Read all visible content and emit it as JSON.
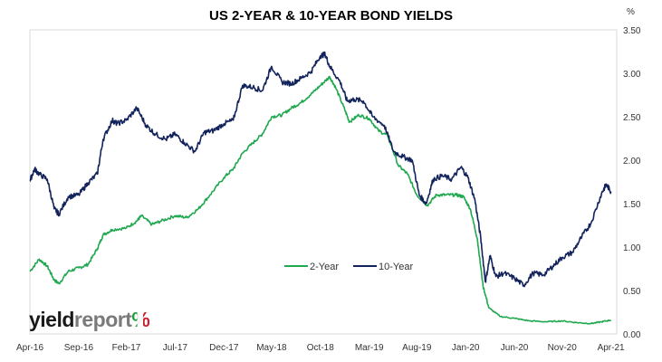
{
  "chart_data": {
    "type": "line",
    "title": "US 2-YEAR & 10-YEAR BOND YIELDS",
    "ylabel": "%",
    "ylim": [
      0,
      3.5
    ],
    "yticks": [
      "0.00",
      "0.50",
      "1.00",
      "1.50",
      "2.00",
      "2.50",
      "3.00",
      "3.50"
    ],
    "xlim": [
      2016.25,
      2021.3
    ],
    "xticks": [
      {
        "x": 2016.25,
        "label": "Apr-16"
      },
      {
        "x": 2016.67,
        "label": "Sep-16"
      },
      {
        "x": 2017.08,
        "label": "Feb-17"
      },
      {
        "x": 2017.5,
        "label": "Jul-17"
      },
      {
        "x": 2017.92,
        "label": "Dec-17"
      },
      {
        "x": 2018.33,
        "label": "May-18"
      },
      {
        "x": 2018.75,
        "label": "Oct-18"
      },
      {
        "x": 2019.17,
        "label": "Mar-19"
      },
      {
        "x": 2019.58,
        "label": "Aug-19"
      },
      {
        "x": 2020.0,
        "label": "Jan-20"
      },
      {
        "x": 2020.42,
        "label": "Jun-20"
      },
      {
        "x": 2020.83,
        "label": "Nov-20"
      },
      {
        "x": 2021.25,
        "label": "Apr-21"
      }
    ],
    "grid": false,
    "legend": "center",
    "series": [
      {
        "name": "2-Year",
        "color": "#1fa84f",
        "points": [
          [
            2016.25,
            0.72
          ],
          [
            2016.33,
            0.86
          ],
          [
            2016.4,
            0.78
          ],
          [
            2016.46,
            0.62
          ],
          [
            2016.5,
            0.58
          ],
          [
            2016.58,
            0.72
          ],
          [
            2016.67,
            0.76
          ],
          [
            2016.75,
            0.8
          ],
          [
            2016.83,
            0.98
          ],
          [
            2016.88,
            1.14
          ],
          [
            2016.96,
            1.2
          ],
          [
            2017.08,
            1.22
          ],
          [
            2017.17,
            1.3
          ],
          [
            2017.21,
            1.36
          ],
          [
            2017.3,
            1.26
          ],
          [
            2017.38,
            1.3
          ],
          [
            2017.5,
            1.36
          ],
          [
            2017.6,
            1.34
          ],
          [
            2017.7,
            1.44
          ],
          [
            2017.8,
            1.6
          ],
          [
            2017.92,
            1.8
          ],
          [
            2018.0,
            1.9
          ],
          [
            2018.08,
            2.08
          ],
          [
            2018.17,
            2.2
          ],
          [
            2018.25,
            2.3
          ],
          [
            2018.33,
            2.5
          ],
          [
            2018.42,
            2.52
          ],
          [
            2018.5,
            2.6
          ],
          [
            2018.58,
            2.66
          ],
          [
            2018.67,
            2.76
          ],
          [
            2018.75,
            2.86
          ],
          [
            2018.83,
            2.96
          ],
          [
            2018.88,
            2.84
          ],
          [
            2018.96,
            2.58
          ],
          [
            2019.0,
            2.44
          ],
          [
            2019.08,
            2.52
          ],
          [
            2019.17,
            2.48
          ],
          [
            2019.25,
            2.34
          ],
          [
            2019.33,
            2.28
          ],
          [
            2019.42,
            1.94
          ],
          [
            2019.5,
            1.84
          ],
          [
            2019.58,
            1.6
          ],
          [
            2019.67,
            1.48
          ],
          [
            2019.75,
            1.6
          ],
          [
            2019.83,
            1.6
          ],
          [
            2019.92,
            1.6
          ],
          [
            2019.98,
            1.58
          ],
          [
            2020.04,
            1.44
          ],
          [
            2020.1,
            1.1
          ],
          [
            2020.15,
            0.55
          ],
          [
            2020.2,
            0.3
          ],
          [
            2020.3,
            0.2
          ],
          [
            2020.42,
            0.18
          ],
          [
            2020.55,
            0.15
          ],
          [
            2020.7,
            0.14
          ],
          [
            2020.83,
            0.15
          ],
          [
            2020.96,
            0.13
          ],
          [
            2021.08,
            0.12
          ],
          [
            2021.17,
            0.14
          ],
          [
            2021.25,
            0.16
          ]
        ]
      },
      {
        "name": "10-Year",
        "color": "#13235c",
        "points": [
          [
            2016.25,
            1.76
          ],
          [
            2016.29,
            1.9
          ],
          [
            2016.33,
            1.84
          ],
          [
            2016.4,
            1.78
          ],
          [
            2016.46,
            1.44
          ],
          [
            2016.5,
            1.38
          ],
          [
            2016.58,
            1.58
          ],
          [
            2016.67,
            1.6
          ],
          [
            2016.75,
            1.74
          ],
          [
            2016.83,
            1.84
          ],
          [
            2016.88,
            2.24
          ],
          [
            2016.96,
            2.46
          ],
          [
            2017.0,
            2.42
          ],
          [
            2017.08,
            2.46
          ],
          [
            2017.17,
            2.6
          ],
          [
            2017.25,
            2.4
          ],
          [
            2017.33,
            2.3
          ],
          [
            2017.42,
            2.24
          ],
          [
            2017.5,
            2.3
          ],
          [
            2017.58,
            2.2
          ],
          [
            2017.67,
            2.1
          ],
          [
            2017.75,
            2.32
          ],
          [
            2017.83,
            2.34
          ],
          [
            2017.92,
            2.42
          ],
          [
            2018.0,
            2.46
          ],
          [
            2018.08,
            2.86
          ],
          [
            2018.17,
            2.84
          ],
          [
            2018.25,
            2.8
          ],
          [
            2018.33,
            3.08
          ],
          [
            2018.42,
            2.9
          ],
          [
            2018.5,
            2.88
          ],
          [
            2018.58,
            2.94
          ],
          [
            2018.67,
            3.02
          ],
          [
            2018.75,
            3.2
          ],
          [
            2018.79,
            3.22
          ],
          [
            2018.83,
            3.08
          ],
          [
            2018.92,
            2.9
          ],
          [
            2018.98,
            2.68
          ],
          [
            2019.04,
            2.7
          ],
          [
            2019.12,
            2.68
          ],
          [
            2019.2,
            2.5
          ],
          [
            2019.3,
            2.4
          ],
          [
            2019.38,
            2.1
          ],
          [
            2019.46,
            2.04
          ],
          [
            2019.54,
            2.0
          ],
          [
            2019.6,
            1.6
          ],
          [
            2019.66,
            1.5
          ],
          [
            2019.72,
            1.78
          ],
          [
            2019.8,
            1.82
          ],
          [
            2019.88,
            1.78
          ],
          [
            2019.96,
            1.92
          ],
          [
            2020.02,
            1.8
          ],
          [
            2020.08,
            1.54
          ],
          [
            2020.13,
            1.1
          ],
          [
            2020.17,
            0.6
          ],
          [
            2020.21,
            0.9
          ],
          [
            2020.26,
            0.66
          ],
          [
            2020.33,
            0.7
          ],
          [
            2020.42,
            0.64
          ],
          [
            2020.5,
            0.56
          ],
          [
            2020.58,
            0.7
          ],
          [
            2020.67,
            0.68
          ],
          [
            2020.75,
            0.78
          ],
          [
            2020.83,
            0.88
          ],
          [
            2020.92,
            0.94
          ],
          [
            2021.0,
            1.12
          ],
          [
            2021.08,
            1.28
          ],
          [
            2021.17,
            1.62
          ],
          [
            2021.21,
            1.72
          ],
          [
            2021.25,
            1.64
          ]
        ]
      }
    ]
  },
  "logo": {
    "part1": "yield",
    "part2": "report",
    "part3": "%"
  }
}
